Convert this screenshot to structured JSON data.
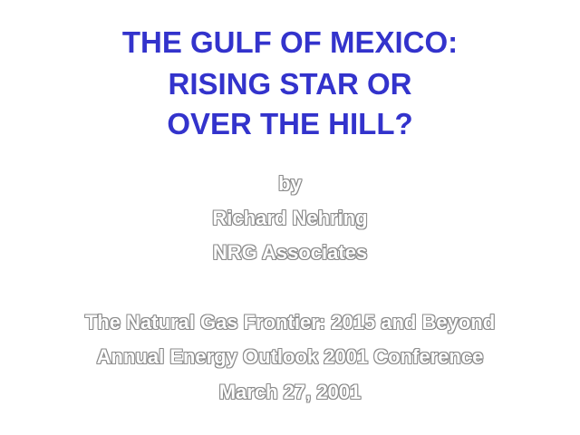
{
  "title": {
    "line1": "THE GULF OF MEXICO:",
    "line2": "RISING STAR OR",
    "line3": "OVER THE HILL?"
  },
  "byline": {
    "by": "by",
    "author": "Richard Nehring",
    "organization": "NRG Associates"
  },
  "conference": {
    "session": "The Natural Gas Frontier: 2015 and Beyond",
    "event": "Annual Energy Outlook 2001 Conference",
    "date": "March 27, 2001"
  },
  "colors": {
    "title": "#3333cc",
    "outline_text": "#ffffff",
    "outline_edge": "#8a8a8a",
    "background": "#ffffff"
  }
}
